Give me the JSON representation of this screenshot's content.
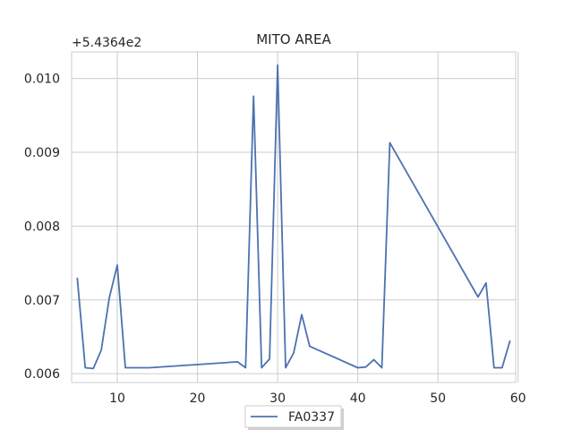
{
  "chart_data": {
    "type": "line",
    "title": "MITO AREA",
    "xlabel": "",
    "ylabel": "",
    "y_offset_label": "+5.4364e2",
    "xlim": [
      4.3,
      59.7
    ],
    "ylim": [
      0.00588,
      0.01036
    ],
    "xticks": [
      10,
      20,
      30,
      40,
      50,
      60
    ],
    "yticks": [
      0.006,
      0.007,
      0.008,
      0.009,
      0.01
    ],
    "ytick_labels": [
      "0.006",
      "0.007",
      "0.008",
      "0.009",
      "0.010"
    ],
    "grid": true,
    "legend_position": "bottom-center",
    "series": [
      {
        "name": "FA0337",
        "color": "#4c72b0",
        "x": [
          5,
          6,
          7,
          8,
          9,
          10,
          11,
          12,
          14,
          25,
          26,
          27,
          28,
          29,
          30,
          31,
          32,
          33,
          34,
          40,
          41,
          42,
          43,
          44,
          55,
          56,
          57,
          58,
          59
        ],
        "y": [
          0.0073,
          0.00608,
          0.00607,
          0.00632,
          0.00703,
          0.00747,
          0.00608,
          0.00608,
          0.00608,
          0.00616,
          0.00608,
          0.00976,
          0.00608,
          0.0062,
          0.01018,
          0.00608,
          0.00628,
          0.0068,
          0.00637,
          0.00608,
          0.00609,
          0.00619,
          0.00608,
          0.00913,
          0.00704,
          0.00723,
          0.00608,
          0.00608,
          0.00645
        ]
      }
    ]
  }
}
